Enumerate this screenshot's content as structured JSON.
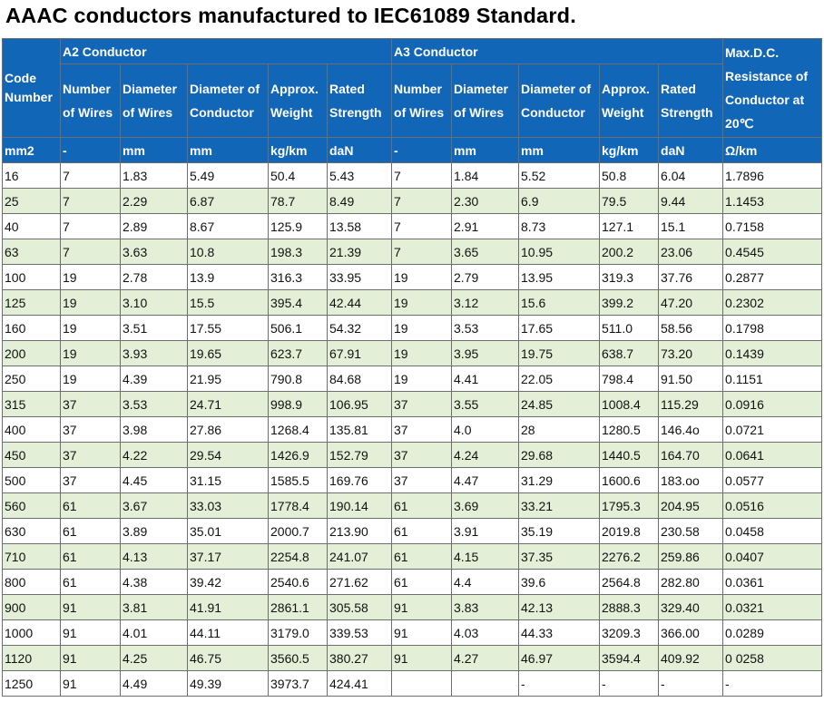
{
  "title": "AAAC conductors manufactured to IEC61089 Standard.",
  "header": {
    "code_number": "Code Number",
    "a2_group": "A2 Conductor",
    "a3_group": "A3 Conductor",
    "max_dc": "Max.D.C. Resistance of Conductor at 20℃",
    "sub": {
      "number_of_wires": "Number of Wires",
      "diameter_of_wires": "Diameter of Wires",
      "diameter_of_conductor": "Diameter of Conductor",
      "approx_weight": "Approx. Weight",
      "rated_strength": "Rated Strength"
    },
    "units": [
      "mm2",
      "-",
      "mm",
      "mm",
      "kg/km",
      "daN",
      "-",
      "mm",
      "mm",
      "kg/km",
      "daN",
      "Ω/km"
    ]
  },
  "rows": [
    [
      "16",
      "7",
      "1.83",
      "5.49",
      "50.4",
      "5.43",
      "7",
      "1.84",
      "5.52",
      "50.8",
      "6.04",
      "1.7896"
    ],
    [
      "25",
      "7",
      "2.29",
      "6.87",
      "78.7",
      "8.49",
      "7",
      "2.30",
      "6.9",
      "79.5",
      "9.44",
      "1.1453"
    ],
    [
      "40",
      "7",
      "2.89",
      "8.67",
      "125.9",
      "13.58",
      "7",
      "2.91",
      "8.73",
      "127.1",
      "15.1",
      "0.7158"
    ],
    [
      "63",
      "7",
      "3.63",
      "10.8",
      "198.3",
      "21.39",
      "7",
      "3.65",
      "10.95",
      "200.2",
      "23.06",
      "0.4545"
    ],
    [
      "100",
      "19",
      "2.78",
      "13.9",
      "316.3",
      "33.95",
      "19",
      "2.79",
      "13.95",
      "319.3",
      "37.76",
      "0.2877"
    ],
    [
      "125",
      "19",
      "3.10",
      "15.5",
      "395.4",
      "42.44",
      "19",
      "3.12",
      "15.6",
      "399.2",
      "47.20",
      "0.2302"
    ],
    [
      "160",
      "19",
      "3.51",
      "17.55",
      "506.1",
      "54.32",
      "19",
      "3.53",
      "17.65",
      "511.0",
      "58.56",
      "0.1798"
    ],
    [
      "200",
      "19",
      "3.93",
      "19.65",
      "623.7",
      "67.91",
      "19",
      "3.95",
      "19.75",
      "638.7",
      "73.20",
      "0.1439"
    ],
    [
      "250",
      "19",
      "4.39",
      "21.95",
      "790.8",
      "84.68",
      "19",
      "4.41",
      "22.05",
      "798.4",
      "91.50",
      "0.1151"
    ],
    [
      "315",
      "37",
      "3.53",
      "24.71",
      "998.9",
      "106.95",
      "37",
      "3.55",
      "24.85",
      "1008.4",
      "115.29",
      "0.0916"
    ],
    [
      "400",
      "37",
      "3.98",
      "27.86",
      "1268.4",
      "135.81",
      "37",
      "4.0",
      "28",
      "1280.5",
      "146.4o",
      "0.0721"
    ],
    [
      "450",
      "37",
      "4.22",
      "29.54",
      "1426.9",
      "152.79",
      "37",
      "4.24",
      "29.68",
      "1440.5",
      "164.70",
      "0.0641"
    ],
    [
      "500",
      "37",
      "4.45",
      "31.15",
      "1585.5",
      "169.76",
      "37",
      "4.47",
      "31.29",
      "1600.6",
      "183.oo",
      "0.0577"
    ],
    [
      "560",
      "61",
      "3.67",
      "33.03",
      "1778.4",
      "190.14",
      "61",
      "3.69",
      "33.21",
      "1795.3",
      "204.95",
      "0.0516"
    ],
    [
      "630",
      "61",
      "3.89",
      "35.01",
      "2000.7",
      "213.90",
      "61",
      "3.91",
      "35.19",
      "2019.8",
      "230.58",
      "0.0458"
    ],
    [
      "710",
      "61",
      "4.13",
      "37.17",
      "2254.8",
      "241.07",
      "61",
      "4.15",
      "37.35",
      "2276.2",
      "259.86",
      "0.0407"
    ],
    [
      "800",
      "61",
      "4.38",
      "39.42",
      "2540.6",
      "271.62",
      "61",
      "4.4",
      "39.6",
      "2564.8",
      "282.80",
      "0.0361"
    ],
    [
      "900",
      "91",
      "3.81",
      "41.91",
      "2861.1",
      "305.58",
      "91",
      "3.83",
      "42.13",
      "2888.3",
      "329.40",
      "0.0321"
    ],
    [
      "1000",
      "91",
      "4.01",
      "44.11",
      "3179.0",
      "339.53",
      "91",
      "4.03",
      "44.33",
      "3209.3",
      "366.00",
      "0.0289"
    ],
    [
      "1120",
      "91",
      "4.25",
      "46.75",
      "3560.5",
      "380.27",
      "91",
      "4.27",
      "46.97",
      "3594.4",
      "409.92",
      "0 0258"
    ],
    [
      "1250",
      "91",
      "4.49",
      "49.39",
      "3973.7",
      "424.41",
      "",
      "",
      "-",
      "-",
      "-",
      "-"
    ]
  ]
}
